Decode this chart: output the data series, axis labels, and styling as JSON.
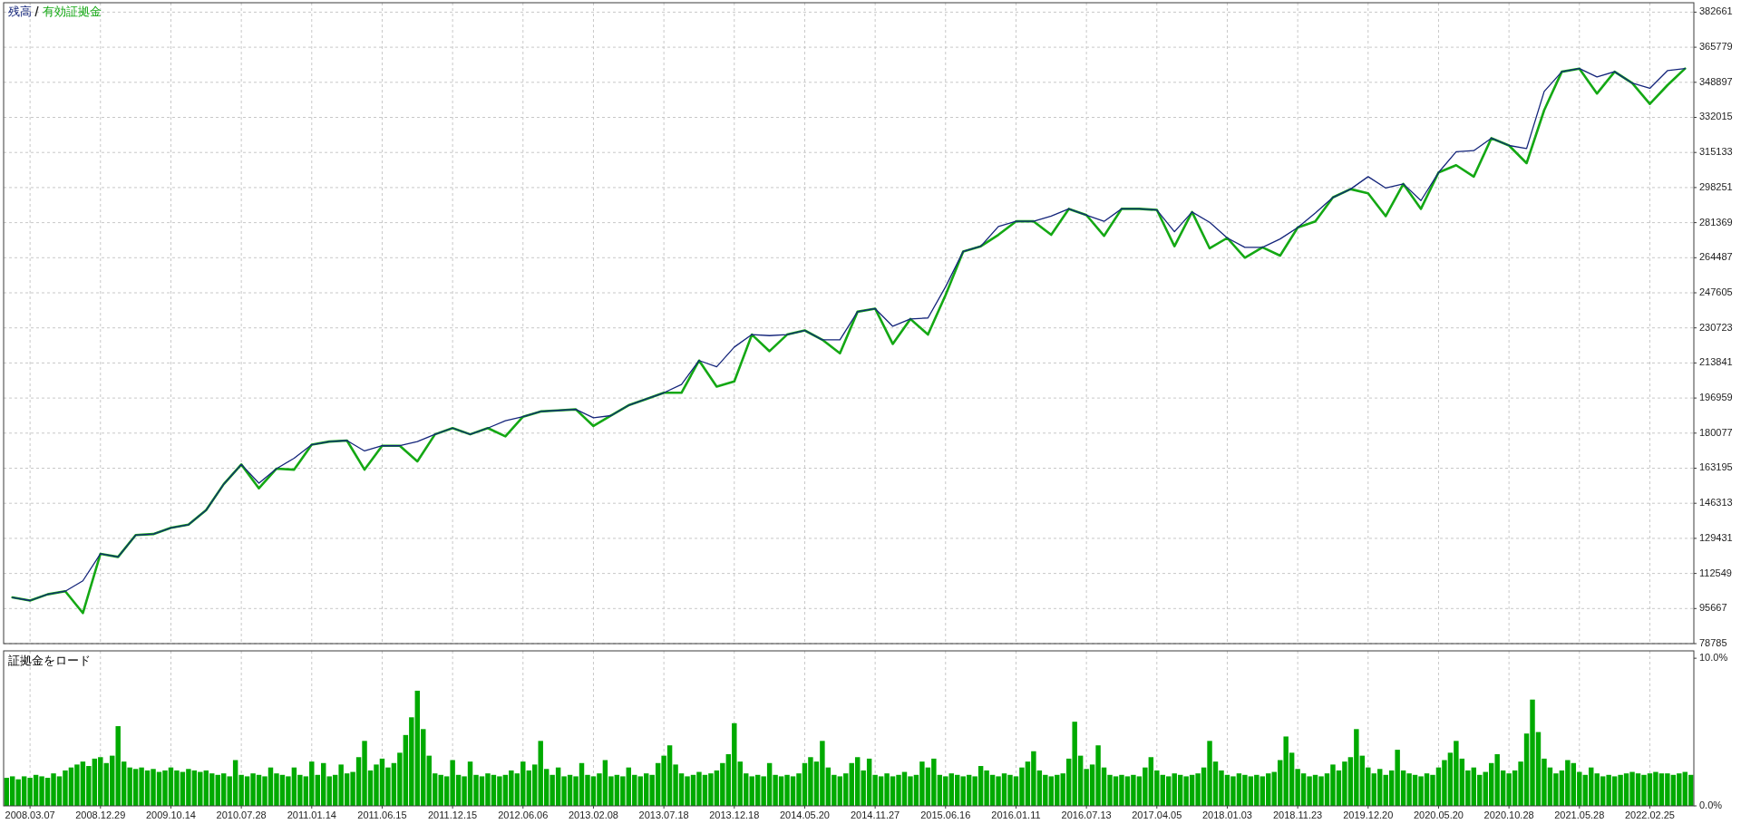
{
  "chart_data": [
    {
      "type": "line",
      "categories": [
        null,
        "2008.03.07",
        null,
        null,
        null,
        "2008.12.29",
        null,
        null,
        null,
        "2009.10.14",
        null,
        null,
        null,
        "2010.07.28",
        null,
        null,
        null,
        "2011.01.14",
        null,
        null,
        null,
        "2011.06.15",
        null,
        null,
        null,
        "2011.12.15",
        null,
        null,
        null,
        "2012.06.06",
        null,
        null,
        null,
        "2013.02.08",
        null,
        null,
        null,
        "2013.07.18",
        null,
        null,
        null,
        "2013.12.18",
        null,
        null,
        null,
        "2014.05.20",
        null,
        null,
        null,
        "2014.11.27",
        null,
        null,
        null,
        "2015.06.16",
        null,
        null,
        null,
        "2016.01.11",
        null,
        null,
        null,
        "2016.07.13",
        null,
        null,
        null,
        "2017.04.05",
        null,
        null,
        null,
        "2018.01.03",
        null,
        null,
        null,
        "2018.11.23",
        null,
        null,
        null,
        "2019.12.20",
        null,
        null,
        null,
        "2020.05.20",
        null,
        null,
        null,
        "2020.10.28",
        null,
        null,
        null,
        "2021.05.28",
        null,
        null,
        null,
        "2022.02.25",
        null,
        null
      ],
      "series": [
        {
          "name": "残高",
          "color": "#13247a",
          "values": [
            101000,
            99500,
            102500,
            104000,
            109000,
            122000,
            120500,
            131000,
            131500,
            134500,
            136000,
            143000,
            155500,
            165000,
            156000,
            163000,
            168000,
            174500,
            176000,
            176500,
            171500,
            174000,
            174000,
            176000,
            179500,
            182500,
            179500,
            182500,
            186000,
            188000,
            190500,
            191000,
            191500,
            187500,
            188500,
            193500,
            196500,
            199500,
            203500,
            215000,
            212000,
            221500,
            227500,
            227000,
            227500,
            229500,
            225000,
            225000,
            238500,
            240000,
            231500,
            235000,
            235500,
            250500,
            267500,
            270000,
            279500,
            282000,
            282000,
            284500,
            288000,
            285000,
            282000,
            288000,
            288000,
            287500,
            277000,
            286500,
            281500,
            274000,
            269500,
            269500,
            273500,
            279000,
            286000,
            293500,
            297500,
            303500,
            298000,
            300000,
            292000,
            305500,
            315500,
            316000,
            322000,
            318500,
            317000,
            344500,
            354000,
            355500,
            351500,
            354000,
            348500,
            346000,
            354500,
            355500
          ]
        },
        {
          "name": "有効証拠金",
          "color": "#14a814",
          "values": [
            101000,
            99500,
            102500,
            104000,
            93500,
            122000,
            120500,
            131000,
            131500,
            134500,
            136000,
            143000,
            155500,
            165000,
            153500,
            163000,
            162500,
            174500,
            176000,
            176500,
            162500,
            174000,
            174000,
            166500,
            179500,
            182500,
            179500,
            182500,
            178500,
            188000,
            190500,
            191000,
            191500,
            183500,
            188500,
            193500,
            196500,
            199500,
            199500,
            215000,
            202500,
            205000,
            227500,
            219500,
            227500,
            229500,
            225000,
            218500,
            238500,
            240000,
            223000,
            235000,
            227500,
            246500,
            267500,
            270000,
            275500,
            282000,
            282000,
            275500,
            288000,
            285000,
            275000,
            288000,
            288000,
            287500,
            270000,
            286500,
            269000,
            274000,
            264500,
            269500,
            265500,
            279000,
            282000,
            293500,
            297500,
            295500,
            284500,
            300000,
            288000,
            305500,
            309000,
            303500,
            322000,
            318500,
            310000,
            335500,
            354000,
            355500,
            343500,
            354000,
            348500,
            338500,
            347500,
            355500
          ]
        }
      ],
      "ylim": [
        78785,
        387200
      ],
      "yticks": [
        78785,
        95667,
        112549,
        129431,
        146313,
        163195,
        180077,
        196959,
        213841,
        230723,
        247605,
        264487,
        281369,
        298251,
        315133,
        332015,
        348897,
        365779,
        382661
      ],
      "grid": true,
      "legend": "top left",
      "tick_labels": "y"
    },
    {
      "type": "bar",
      "title": "証拠金をロード",
      "categories": [
        null,
        null,
        null,
        null,
        "2008.03.07",
        null,
        null,
        null,
        null,
        null,
        null,
        null,
        null,
        null,
        null,
        null,
        "2008.12.29",
        null,
        null,
        null,
        null,
        null,
        null,
        null,
        null,
        null,
        null,
        null,
        "2009.10.14",
        null,
        null,
        null,
        null,
        null,
        null,
        null,
        null,
        null,
        null,
        null,
        "2010.07.28",
        null,
        null,
        null,
        null,
        null,
        null,
        null,
        null,
        null,
        null,
        null,
        "2011.01.14",
        null,
        null,
        null,
        null,
        null,
        null,
        null,
        null,
        null,
        null,
        null,
        "2011.06.15",
        null,
        null,
        null,
        null,
        null,
        null,
        null,
        null,
        null,
        null,
        null,
        "2011.12.15",
        null,
        null,
        null,
        null,
        null,
        null,
        null,
        null,
        null,
        null,
        null,
        "2012.06.06",
        null,
        null,
        null,
        null,
        null,
        null,
        null,
        null,
        null,
        null,
        null,
        "2013.02.08",
        null,
        null,
        null,
        null,
        null,
        null,
        null,
        null,
        null,
        null,
        null,
        "2013.07.18",
        null,
        null,
        null,
        null,
        null,
        null,
        null,
        null,
        null,
        null,
        null,
        "2013.12.18",
        null,
        null,
        null,
        null,
        null,
        null,
        null,
        null,
        null,
        null,
        null,
        "2014.05.20",
        null,
        null,
        null,
        null,
        null,
        null,
        null,
        null,
        null,
        null,
        null,
        "2014.11.27",
        null,
        null,
        null,
        null,
        null,
        null,
        null,
        null,
        null,
        null,
        null,
        "2015.06.16",
        null,
        null,
        null,
        null,
        null,
        null,
        null,
        null,
        null,
        null,
        null,
        "2016.01.11",
        null,
        null,
        null,
        null,
        null,
        null,
        null,
        null,
        null,
        null,
        null,
        "2016.07.13",
        null,
        null,
        null,
        null,
        null,
        null,
        null,
        null,
        null,
        null,
        null,
        "2017.04.05",
        null,
        null,
        null,
        null,
        null,
        null,
        null,
        null,
        null,
        null,
        null,
        "2018.01.03",
        null,
        null,
        null,
        null,
        null,
        null,
        null,
        null,
        null,
        null,
        null,
        "2018.11.23",
        null,
        null,
        null,
        null,
        null,
        null,
        null,
        null,
        null,
        null,
        null,
        "2019.12.20",
        null,
        null,
        null,
        null,
        null,
        null,
        null,
        null,
        null,
        null,
        null,
        "2020.05.20",
        null,
        null,
        null,
        null,
        null,
        null,
        null,
        null,
        null,
        null,
        null,
        "2020.10.28",
        null,
        null,
        null,
        null,
        null,
        null,
        null,
        null,
        null,
        null,
        null,
        "2021.05.28",
        null,
        null,
        null,
        null,
        null,
        null,
        null,
        null,
        null,
        null,
        null,
        "2022.02.25",
        null,
        null,
        null,
        null,
        null,
        null,
        null
      ],
      "values": [
        1.9,
        2.0,
        1.8,
        2.0,
        1.9,
        2.1,
        2.0,
        1.9,
        2.2,
        2.0,
        2.4,
        2.6,
        2.8,
        3.0,
        2.7,
        3.2,
        3.3,
        2.9,
        3.4,
        5.4,
        3.0,
        2.6,
        2.5,
        2.6,
        2.4,
        2.5,
        2.3,
        2.4,
        2.6,
        2.4,
        2.3,
        2.5,
        2.4,
        2.3,
        2.4,
        2.2,
        2.1,
        2.2,
        2.0,
        3.1,
        2.1,
        2.0,
        2.2,
        2.1,
        2.0,
        2.6,
        2.2,
        2.1,
        2.0,
        2.6,
        2.1,
        2.0,
        3.0,
        2.1,
        2.9,
        2.0,
        2.1,
        2.8,
        2.2,
        2.3,
        3.3,
        4.4,
        2.4,
        2.8,
        3.2,
        2.6,
        2.9,
        3.6,
        4.8,
        6.0,
        7.8,
        5.2,
        3.4,
        2.2,
        2.1,
        2.0,
        3.1,
        2.1,
        2.0,
        3.0,
        2.1,
        2.0,
        2.2,
        2.1,
        2.0,
        2.1,
        2.4,
        2.2,
        3.0,
        2.4,
        2.8,
        4.4,
        2.5,
        2.1,
        2.6,
        2.0,
        2.1,
        2.0,
        2.9,
        2.1,
        2.0,
        2.2,
        3.1,
        2.0,
        2.1,
        2.0,
        2.6,
        2.1,
        2.0,
        2.2,
        2.1,
        2.9,
        3.4,
        4.1,
        2.8,
        2.2,
        2.0,
        2.1,
        2.3,
        2.1,
        2.2,
        2.4,
        2.9,
        3.5,
        5.6,
        3.0,
        2.2,
        2.0,
        2.1,
        2.0,
        2.9,
        2.1,
        2.0,
        2.1,
        2.0,
        2.2,
        2.9,
        3.3,
        3.0,
        4.4,
        2.6,
        2.1,
        2.0,
        2.2,
        2.9,
        3.3,
        2.4,
        3.2,
        2.1,
        2.0,
        2.2,
        2.0,
        2.1,
        2.3,
        2.0,
        2.1,
        3.0,
        2.6,
        3.2,
        2.1,
        2.0,
        2.2,
        2.1,
        2.0,
        2.1,
        2.0,
        2.7,
        2.4,
        2.1,
        2.0,
        2.2,
        2.1,
        2.0,
        2.6,
        3.0,
        3.7,
        2.4,
        2.1,
        2.0,
        2.1,
        2.2,
        3.2,
        5.7,
        3.4,
        2.5,
        2.8,
        4.1,
        2.6,
        2.1,
        2.0,
        2.1,
        2.0,
        2.1,
        2.0,
        2.6,
        3.3,
        2.4,
        2.1,
        2.0,
        2.2,
        2.1,
        2.0,
        2.1,
        2.2,
        2.6,
        4.4,
        3.0,
        2.4,
        2.1,
        2.0,
        2.2,
        2.1,
        2.0,
        2.1,
        2.0,
        2.2,
        2.3,
        3.1,
        4.7,
        3.6,
        2.5,
        2.2,
        2.0,
        2.1,
        2.0,
        2.2,
        2.8,
        2.4,
        3.0,
        3.3,
        5.2,
        3.4,
        2.6,
        2.2,
        2.5,
        2.1,
        2.4,
        3.8,
        2.4,
        2.2,
        2.1,
        2.0,
        2.2,
        2.1,
        2.6,
        3.1,
        3.6,
        4.4,
        3.2,
        2.4,
        2.6,
        2.1,
        2.3,
        2.9,
        3.5,
        2.4,
        2.2,
        2.4,
        3.0,
        4.9,
        7.2,
        5.0,
        3.2,
        2.6,
        2.2,
        2.4,
        3.1,
        2.9,
        2.3,
        2.1,
        2.6,
        2.2,
        2.0,
        2.1,
        2.0,
        2.1,
        2.2,
        2.3,
        2.2,
        2.1,
        2.2,
        2.3,
        2.2,
        2.2,
        2.1,
        2.2,
        2.3,
        2.1
      ],
      "color": "#00aa00",
      "ylim": [
        0,
        10.5
      ],
      "yticks": [
        {
          "value": 0,
          "label": "0.0%"
        },
        {
          "value": 10,
          "label": "10.0%"
        }
      ],
      "grid": "x"
    }
  ]
}
